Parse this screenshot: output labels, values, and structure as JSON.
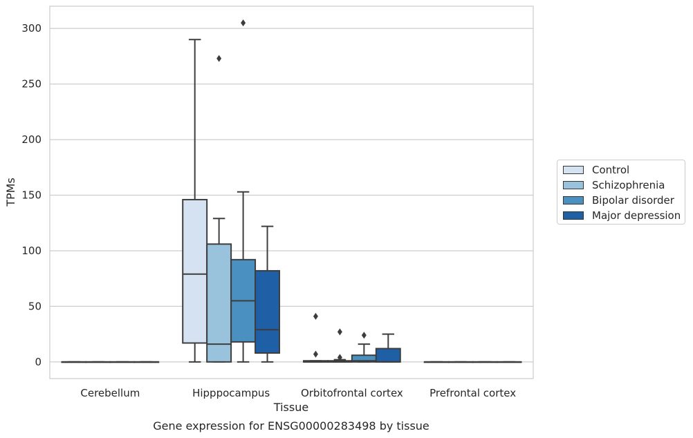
{
  "chart_data": {
    "type": "box",
    "title": "Gene expression for ENSG00000283498 by tissue",
    "xlabel": "Tissue",
    "ylabel": "TPMs",
    "categories": [
      "Cerebellum",
      "Hipppocampus",
      "Orbitofrontal cortex",
      "Prefrontal cortex"
    ],
    "ylim": [
      -15,
      320
    ],
    "yticks": [
      0,
      50,
      100,
      150,
      200,
      250,
      300
    ],
    "grid": true,
    "legend_position": "right",
    "series": [
      {
        "name": "Control",
        "color": "#d4e2f1",
        "boxes": [
          {
            "min": 0,
            "q1": 0,
            "median": 0,
            "q3": 0,
            "max": 0,
            "outliers": []
          },
          {
            "min": 0,
            "q1": 17,
            "median": 79,
            "q3": 146,
            "max": 290,
            "outliers": []
          },
          {
            "min": 0,
            "q1": 0,
            "median": 0,
            "q3": 1,
            "max": 1,
            "outliers": [
              7,
              41
            ]
          },
          {
            "min": 0,
            "q1": 0,
            "median": 0,
            "q3": 0,
            "max": 0,
            "outliers": []
          }
        ]
      },
      {
        "name": "Schizophrenia",
        "color": "#99c3dd",
        "boxes": [
          {
            "min": 0,
            "q1": 0,
            "median": 0,
            "q3": 0,
            "max": 0,
            "outliers": []
          },
          {
            "min": 0,
            "q1": 0,
            "median": 16,
            "q3": 106,
            "max": 129,
            "outliers": [
              273
            ]
          },
          {
            "min": 0,
            "q1": 0,
            "median": 0,
            "q3": 1,
            "max": 2,
            "outliers": [
              4,
              27
            ]
          },
          {
            "min": 0,
            "q1": 0,
            "median": 0,
            "q3": 0,
            "max": 0,
            "outliers": []
          }
        ]
      },
      {
        "name": "Bipolar disorder",
        "color": "#4a90c0",
        "boxes": [
          {
            "min": 0,
            "q1": 0,
            "median": 0,
            "q3": 0,
            "max": 0,
            "outliers": []
          },
          {
            "min": 0,
            "q1": 18,
            "median": 55,
            "q3": 92,
            "max": 153,
            "outliers": [
              305
            ]
          },
          {
            "min": 0,
            "q1": 0,
            "median": 1,
            "q3": 6,
            "max": 16,
            "outliers": [
              24
            ]
          },
          {
            "min": 0,
            "q1": 0,
            "median": 0,
            "q3": 0,
            "max": 0,
            "outliers": []
          }
        ]
      },
      {
        "name": "Major depression",
        "color": "#1f5fa6",
        "boxes": [
          {
            "min": 0,
            "q1": 0,
            "median": 0,
            "q3": 0,
            "max": 0,
            "outliers": []
          },
          {
            "min": 0,
            "q1": 8,
            "median": 29,
            "q3": 82,
            "max": 122,
            "outliers": []
          },
          {
            "min": 0,
            "q1": 0,
            "median": 0,
            "q3": 12,
            "max": 25,
            "outliers": []
          },
          {
            "min": 0,
            "q1": 0,
            "median": 0,
            "q3": 0,
            "max": 0,
            "outliers": []
          }
        ]
      }
    ]
  }
}
